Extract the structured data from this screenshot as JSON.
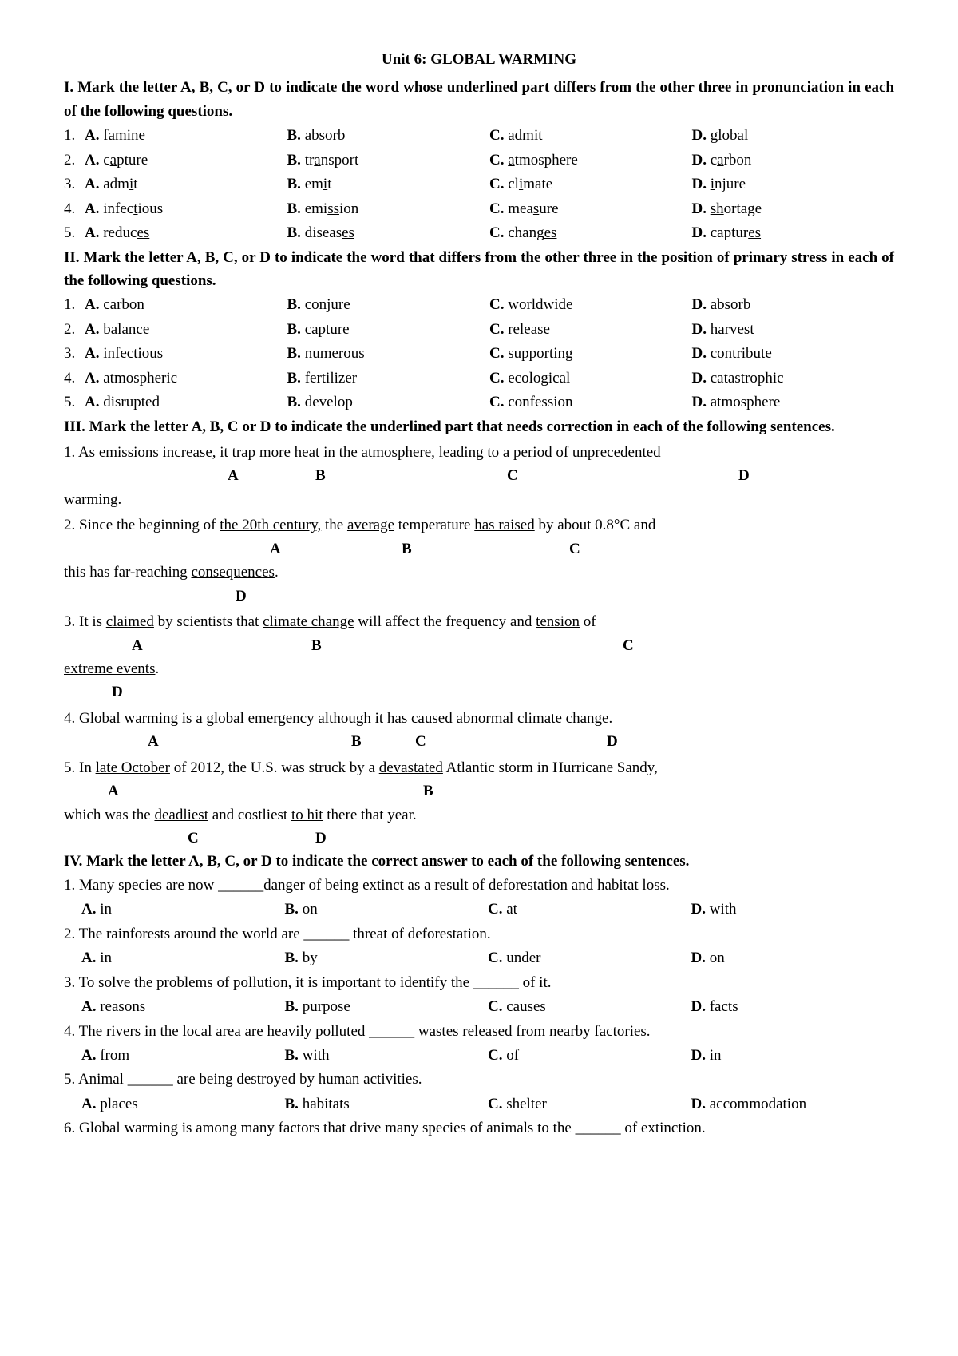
{
  "title": "Unit 6: GLOBAL WARMING",
  "sec1": {
    "head": "I. Mark the letter A, B, C, or D to indicate the word whose underlined part differs from the other three in pronunciation in each of the following questions.",
    "rows": [
      {
        "n": "1.",
        "a_pre": "f",
        "a_u": "a",
        "a_post": "mine",
        "b_u": "a",
        "b_post": "bsorb",
        "c_u": "a",
        "c_post": "dmit",
        "d_pre": "glob",
        "d_u": "a",
        "d_post": "l"
      },
      {
        "n": "2.",
        "a_pre": "c",
        "a_u": "a",
        "a_post": "pture",
        "b_pre": "tr",
        "b_u": "a",
        "b_post": "nsport",
        "c_u": "a",
        "c_post": "tmosphere",
        "d_pre": "c",
        "d_u": "a",
        "d_post": "rbon"
      },
      {
        "n": "3.",
        "a_pre": "adm",
        "a_u": "i",
        "a_post": "t",
        "b_pre": "em",
        "b_u": "i",
        "b_post": "t",
        "c_pre": "cl",
        "c_u": "i",
        "c_post": "mate",
        "d_u": "i",
        "d_post": "njure"
      },
      {
        "n": "4.",
        "a_pre": "infec",
        "a_u": "t",
        "a_post": "ious",
        "b_pre": "emi",
        "b_u": "ss",
        "b_post": "ion",
        "c_pre": "mea",
        "c_u": "s",
        "c_post": "ure",
        "d_u": "sh",
        "d_post": "ortage"
      },
      {
        "n": "5.",
        "a_pre": "reduc",
        "a_u": "es",
        "b_pre": "diseas",
        "b_u": "es",
        "c_pre": "chang",
        "c_u": "es",
        "d_pre": "captur",
        "d_u": "es"
      }
    ]
  },
  "sec2": {
    "head": "II. Mark the letter A, B, C, or D to indicate the word that differs from the other three in the position of primary stress in each of the following questions.",
    "rows": [
      {
        "n": "1.",
        "a": "carbon",
        "b": "conjure",
        "c": "worldwide",
        "d": "absorb"
      },
      {
        "n": "2.",
        "a": "balance",
        "b": "capture",
        "c": "release",
        "d": "harvest"
      },
      {
        "n": "3.",
        "a": "infectious",
        "b": "numerous",
        "c": "supporting",
        "d": "contribute"
      },
      {
        "n": "4.",
        "a": "atmospheric",
        "b": "fertilizer",
        "c": "ecological",
        "d": "catastrophic"
      },
      {
        "n": "5.",
        "a": "disrupted",
        "b": "develop",
        "c": "confession",
        "d": "atmosphere"
      }
    ]
  },
  "sec3": {
    "head": "III. Mark the letter A, B, C or D to indicate the underlined part that needs correction in each of the following sentences.",
    "q1": {
      "pre": "1. As emissions increase, ",
      "u1": "it",
      "mid1": " trap more ",
      "u2": "heat",
      "mid2": " in the atmosphere, ",
      "u3": "leading",
      "mid3": " to a period of ",
      "u4": "unprecedented",
      "tail": "warming.",
      "A": "A",
      "B": "B",
      "C": "C",
      "D": "D"
    },
    "q2": {
      "pre": "2. Since the beginning of ",
      "u1": "the 20th century,",
      "mid1": " the ",
      "u2": "average",
      "mid2": " temperature ",
      "u3": "has raised",
      "mid3": " by about 0.8°C and",
      "tail_pre": "this has far-reaching ",
      "tail_u": "consequences",
      "tail_post": ".",
      "A": "A",
      "B": "B",
      "C": "C",
      "D": "D"
    },
    "q3": {
      "pre": "3. It is ",
      "u1": "claimed",
      "mid1": " by scientists that ",
      "u2": "climate change",
      "mid2": " will affect the frequency and ",
      "u3": "tension",
      "mid3": " of",
      "tail_u": "extreme events",
      "tail_post": ".",
      "A": "A",
      "B": "B",
      "C": "C",
      "D": "D"
    },
    "q4": {
      "pre": "4. Global ",
      "u1": "warming",
      "mid1": " is a global emergency ",
      "u2": "although",
      "mid2": " it ",
      "u3": "has caused",
      "mid3": " abnormal ",
      "u4": "climate change",
      "post": ".",
      "A": "A",
      "B": "B",
      "C": "C",
      "D": "D"
    },
    "q5": {
      "pre": "5. In ",
      "u1": "late October",
      "mid1": " of 2012, the U.S. was struck by a ",
      "u2": "devastated",
      "mid2": " Atlantic storm in Hurricane Sandy,",
      "l2_pre": "which was the ",
      "l2_u1": "deadliest",
      "l2_mid": " and costliest ",
      "l2_u2": "to hit",
      "l2_post": " there that year.",
      "A": "A",
      "B": "B",
      "C": "C",
      "D": "D"
    }
  },
  "sec4": {
    "head": "IV. Mark the letter A, B, C, or D to indicate the correct answer to each of the following sentences.",
    "q": [
      {
        "text": "1. Many species are now ______danger of being extinct as a result of deforestation and habitat loss.",
        "a": "in",
        "b": "on",
        "c": "at",
        "d": "with"
      },
      {
        "text": "2. The rainforests around the world are ______ threat of deforestation.",
        "a": "in",
        "b": "by",
        "c": "under",
        "d": "on"
      },
      {
        "text": "3. To solve the problems of pollution, it is important to identify the ______ of it.",
        "a": "reasons",
        "b": "purpose",
        "c": "causes",
        "d": "facts"
      },
      {
        "text": "4. The rivers in the local area are heavily polluted ______ wastes released from nearby factories.",
        "a": "from",
        "b": "with",
        "c": "of",
        "d": "in"
      },
      {
        "text": "5. Animal ______ are being destroyed by human activities.",
        "a": "places",
        "b": "habitats",
        "c": "shelter",
        "d": "accommodation"
      },
      {
        "text": "6. Global warming is among many factors that drive many species of animals to the ______ of extinction."
      }
    ]
  },
  "labels": {
    "A": "A.",
    "B": "B.",
    "C": "C.",
    "D": "D."
  }
}
